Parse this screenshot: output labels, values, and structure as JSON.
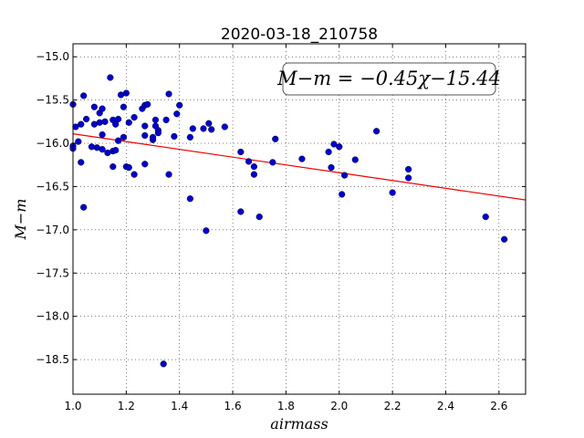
{
  "chart_data": {
    "type": "scatter",
    "title": "2020-03-18_210758",
    "xlabel": "airmass",
    "ylabel": "M−m",
    "xlim": [
      1.0,
      2.7
    ],
    "ylim": [
      -18.9,
      -14.85
    ],
    "y_inverted": true,
    "grid": true,
    "xticks": [
      1.0,
      1.2,
      1.4,
      1.6,
      1.8,
      2.0,
      2.2,
      2.4,
      2.6
    ],
    "xtick_labels": [
      "1.0",
      "1.2",
      "1.4",
      "1.6",
      "1.8",
      "2.0",
      "2.2",
      "2.4",
      "2.6"
    ],
    "yticks": [
      -15.0,
      -15.5,
      -16.0,
      -16.5,
      -17.0,
      -17.5,
      -18.0,
      -18.5
    ],
    "ytick_labels": [
      "−15.0",
      "−15.5",
      "−16.0",
      "−16.5",
      "−17.0",
      "−17.5",
      "−18.0",
      "−18.5"
    ],
    "annotation": "M−m = −0.45χ−15.44",
    "annotation_position": "top-right",
    "point_color": "#0000cc",
    "line_color": "#ee0000",
    "fit": {
      "slope": -0.45,
      "intercept": -15.44
    },
    "points": [
      [
        1.0,
        -15.55
      ],
      [
        1.0,
        -16.03
      ],
      [
        1.0,
        -16.06
      ],
      [
        1.01,
        -15.81
      ],
      [
        1.03,
        -15.78
      ],
      [
        1.03,
        -16.22
      ],
      [
        1.02,
        -15.98
      ],
      [
        1.04,
        -15.45
      ],
      [
        1.04,
        -16.74
      ],
      [
        1.05,
        -15.72
      ],
      [
        1.07,
        -16.04
      ],
      [
        1.08,
        -15.58
      ],
      [
        1.08,
        -15.78
      ],
      [
        1.09,
        -16.05
      ],
      [
        1.1,
        -15.65
      ],
      [
        1.1,
        -15.76
      ],
      [
        1.11,
        -15.6
      ],
      [
        1.11,
        -15.9
      ],
      [
        1.11,
        -16.07
      ],
      [
        1.12,
        -15.75
      ],
      [
        1.13,
        -16.11
      ],
      [
        1.14,
        -15.24
      ],
      [
        1.15,
        -15.73
      ],
      [
        1.15,
        -16.09
      ],
      [
        1.15,
        -16.27
      ],
      [
        1.16,
        -15.78
      ],
      [
        1.16,
        -16.08
      ],
      [
        1.17,
        -15.72
      ],
      [
        1.17,
        -15.97
      ],
      [
        1.18,
        -15.44
      ],
      [
        1.19,
        -15.93
      ],
      [
        1.19,
        -15.58
      ],
      [
        1.2,
        -15.42
      ],
      [
        1.2,
        -16.27
      ],
      [
        1.21,
        -16.28
      ],
      [
        1.21,
        -15.76
      ],
      [
        1.23,
        -15.7
      ],
      [
        1.23,
        -16.36
      ],
      [
        1.26,
        -15.6
      ],
      [
        1.27,
        -15.56
      ],
      [
        1.27,
        -15.8
      ],
      [
        1.27,
        -15.91
      ],
      [
        1.27,
        -16.24
      ],
      [
        1.28,
        -15.55
      ],
      [
        1.3,
        -15.96
      ],
      [
        1.3,
        -15.93
      ],
      [
        1.31,
        -15.73
      ],
      [
        1.31,
        -15.8
      ],
      [
        1.32,
        -15.85
      ],
      [
        1.32,
        -15.88
      ],
      [
        1.34,
        -18.55
      ],
      [
        1.35,
        -15.73
      ],
      [
        1.36,
        -15.43
      ],
      [
        1.36,
        -16.36
      ],
      [
        1.38,
        -15.92
      ],
      [
        1.39,
        -15.66
      ],
      [
        1.4,
        -15.56
      ],
      [
        1.44,
        -15.93
      ],
      [
        1.44,
        -16.64
      ],
      [
        1.45,
        -15.83
      ],
      [
        1.49,
        -15.83
      ],
      [
        1.5,
        -17.01
      ],
      [
        1.51,
        -15.77
      ],
      [
        1.52,
        -15.84
      ],
      [
        1.57,
        -15.81
      ],
      [
        1.63,
        -16.1
      ],
      [
        1.63,
        -16.79
      ],
      [
        1.66,
        -16.21
      ],
      [
        1.68,
        -16.27
      ],
      [
        1.68,
        -16.36
      ],
      [
        1.7,
        -16.85
      ],
      [
        1.75,
        -16.22
      ],
      [
        1.76,
        -15.95
      ],
      [
        1.86,
        -16.18
      ],
      [
        1.96,
        -16.1
      ],
      [
        1.97,
        -16.28
      ],
      [
        1.98,
        -16.01
      ],
      [
        2.0,
        -16.04
      ],
      [
        2.01,
        -16.59
      ],
      [
        2.02,
        -16.37
      ],
      [
        2.06,
        -16.19
      ],
      [
        2.14,
        -15.86
      ],
      [
        2.2,
        -16.57
      ],
      [
        2.26,
        -16.3
      ],
      [
        2.26,
        -16.4
      ],
      [
        2.55,
        -16.85
      ],
      [
        2.62,
        -17.11
      ]
    ]
  }
}
